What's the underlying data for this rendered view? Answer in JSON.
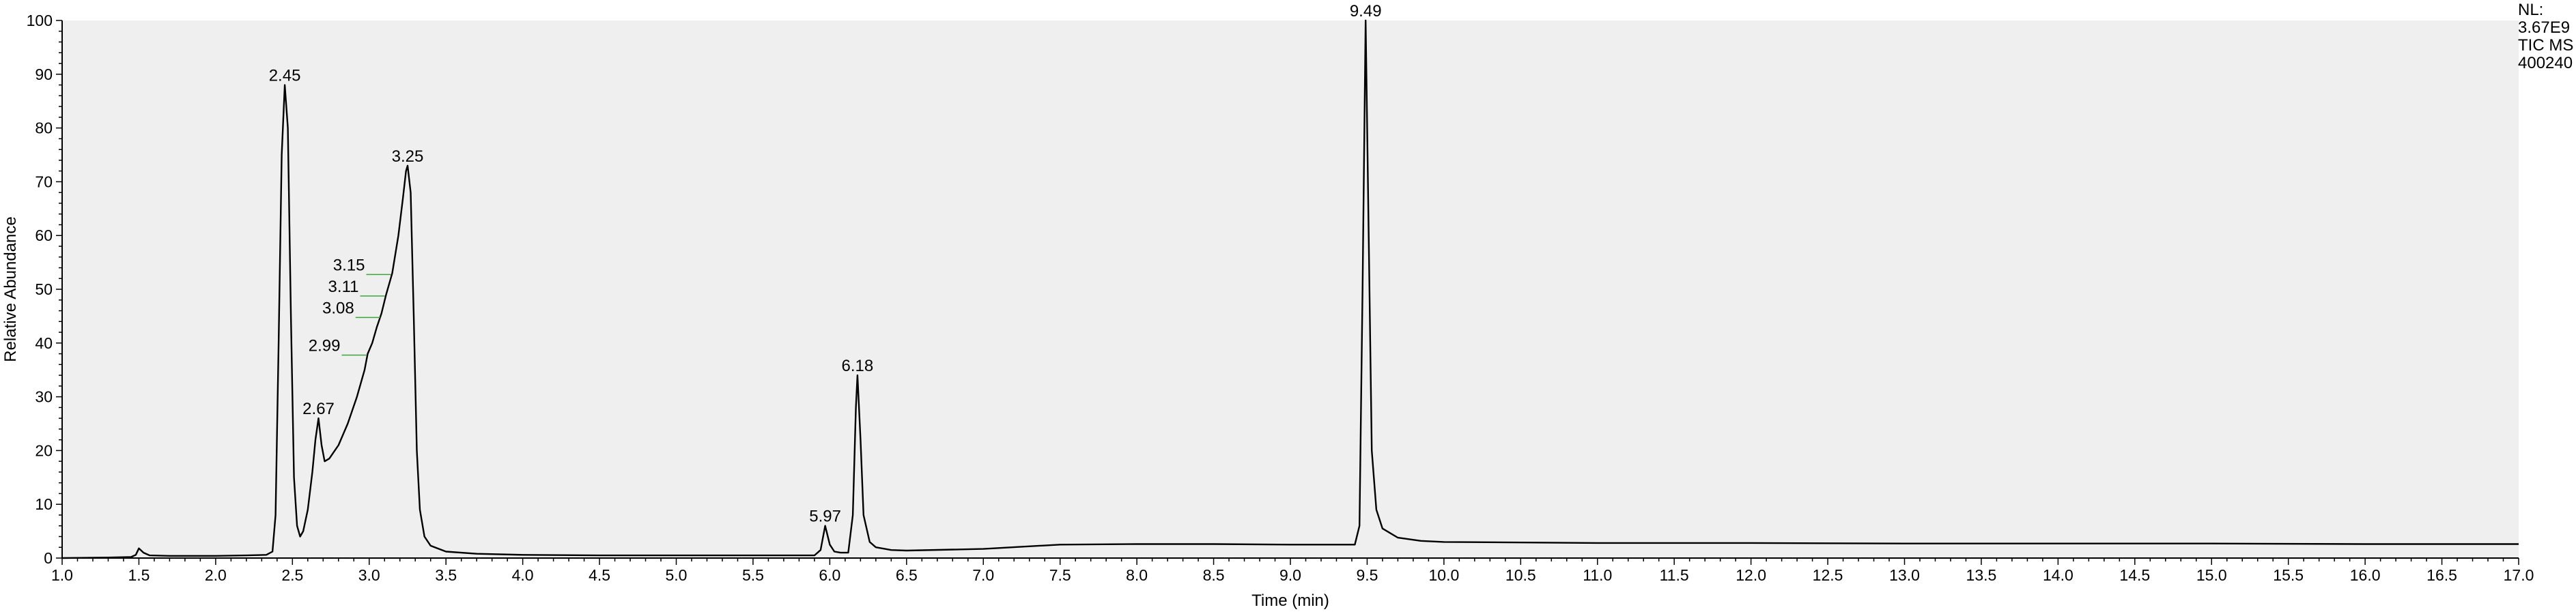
{
  "chart_data": {
    "type": "line",
    "xlabel": "Time (min)",
    "ylabel": "Relative Abundance",
    "xlim": [
      1.0,
      17.0
    ],
    "ylim": [
      0,
      100
    ],
    "x_ticks": [
      "1.0",
      "1.5",
      "2.0",
      "2.5",
      "3.0",
      "3.5",
      "4.0",
      "4.5",
      "5.0",
      "5.5",
      "6.0",
      "6.5",
      "7.0",
      "7.5",
      "8.0",
      "8.5",
      "9.0",
      "9.5",
      "10.0",
      "10.5",
      "11.0",
      "11.5",
      "12.0",
      "12.5",
      "13.0",
      "13.5",
      "14.0",
      "14.5",
      "15.0",
      "15.5",
      "16.0",
      "16.5",
      "17.0"
    ],
    "y_ticks": [
      "0",
      "10",
      "20",
      "30",
      "40",
      "50",
      "60",
      "70",
      "80",
      "90",
      "100"
    ],
    "info_lines": [
      "NL:",
      "3.67E9",
      "TIC  MS",
      "400240"
    ],
    "peak_labels": [
      {
        "text": "2.45",
        "x": 2.45,
        "y": 88
      },
      {
        "text": "2.67",
        "x": 2.67,
        "y": 26
      },
      {
        "text": "3.25",
        "x": 3.25,
        "y": 73
      },
      {
        "text": "3.15",
        "x": 3.15,
        "y": 53
      },
      {
        "text": "3.11",
        "x": 3.11,
        "y": 49
      },
      {
        "text": "3.08",
        "x": 3.08,
        "y": 45
      },
      {
        "text": "2.99",
        "x": 2.99,
        "y": 38
      },
      {
        "text": "5.97",
        "x": 5.97,
        "y": 6
      },
      {
        "text": "6.18",
        "x": 6.18,
        "y": 34
      },
      {
        "text": "9.49",
        "x": 9.49,
        "y": 100
      }
    ],
    "series": [
      {
        "name": "TIC MS 400240",
        "points": [
          [
            1.0,
            0.0
          ],
          [
            1.3,
            0.1
          ],
          [
            1.45,
            0.2
          ],
          [
            1.48,
            0.6
          ],
          [
            1.5,
            1.8
          ],
          [
            1.53,
            1.0
          ],
          [
            1.57,
            0.5
          ],
          [
            1.7,
            0.4
          ],
          [
            2.0,
            0.4
          ],
          [
            2.2,
            0.5
          ],
          [
            2.33,
            0.6
          ],
          [
            2.37,
            1.2
          ],
          [
            2.39,
            8
          ],
          [
            2.41,
            40
          ],
          [
            2.43,
            75
          ],
          [
            2.45,
            88
          ],
          [
            2.47,
            80
          ],
          [
            2.49,
            45
          ],
          [
            2.51,
            15
          ],
          [
            2.53,
            6
          ],
          [
            2.55,
            4
          ],
          [
            2.57,
            5
          ],
          [
            2.6,
            9
          ],
          [
            2.63,
            16
          ],
          [
            2.65,
            22
          ],
          [
            2.67,
            26
          ],
          [
            2.69,
            21
          ],
          [
            2.71,
            18
          ],
          [
            2.74,
            18.5
          ],
          [
            2.8,
            21
          ],
          [
            2.86,
            25
          ],
          [
            2.92,
            30
          ],
          [
            2.97,
            35
          ],
          [
            2.99,
            38
          ],
          [
            3.02,
            40
          ],
          [
            3.05,
            43
          ],
          [
            3.08,
            45.5
          ],
          [
            3.11,
            49
          ],
          [
            3.15,
            53
          ],
          [
            3.19,
            60
          ],
          [
            3.22,
            67
          ],
          [
            3.24,
            72
          ],
          [
            3.25,
            73
          ],
          [
            3.27,
            68
          ],
          [
            3.29,
            45
          ],
          [
            3.31,
            20
          ],
          [
            3.33,
            9
          ],
          [
            3.36,
            4
          ],
          [
            3.4,
            2.3
          ],
          [
            3.5,
            1.2
          ],
          [
            3.7,
            0.8
          ],
          [
            4.0,
            0.6
          ],
          [
            4.5,
            0.5
          ],
          [
            5.0,
            0.5
          ],
          [
            5.5,
            0.5
          ],
          [
            5.9,
            0.5
          ],
          [
            5.94,
            1.5
          ],
          [
            5.97,
            6
          ],
          [
            6.0,
            2.5
          ],
          [
            6.03,
            1.2
          ],
          [
            6.07,
            1.0
          ],
          [
            6.12,
            1.0
          ],
          [
            6.15,
            8
          ],
          [
            6.17,
            28
          ],
          [
            6.18,
            34
          ],
          [
            6.2,
            22
          ],
          [
            6.22,
            8
          ],
          [
            6.26,
            3
          ],
          [
            6.3,
            2
          ],
          [
            6.4,
            1.5
          ],
          [
            6.5,
            1.4
          ],
          [
            7.0,
            1.7
          ],
          [
            7.5,
            2.5
          ],
          [
            8.0,
            2.6
          ],
          [
            8.5,
            2.6
          ],
          [
            9.0,
            2.5
          ],
          [
            9.3,
            2.5
          ],
          [
            9.42,
            2.5
          ],
          [
            9.45,
            6
          ],
          [
            9.47,
            50
          ],
          [
            9.49,
            100
          ],
          [
            9.51,
            60
          ],
          [
            9.53,
            20
          ],
          [
            9.56,
            9
          ],
          [
            9.6,
            5.5
          ],
          [
            9.7,
            3.8
          ],
          [
            9.85,
            3.2
          ],
          [
            10.0,
            3.0
          ],
          [
            11.0,
            2.8
          ],
          [
            12.0,
            2.8
          ],
          [
            13.0,
            2.7
          ],
          [
            14.0,
            2.7
          ],
          [
            15.0,
            2.7
          ],
          [
            16.0,
            2.6
          ],
          [
            17.0,
            2.6
          ]
        ]
      }
    ]
  },
  "colors": {
    "plot_background": "#efefef",
    "trace": "#000000",
    "label_line": "#3aa63a"
  }
}
